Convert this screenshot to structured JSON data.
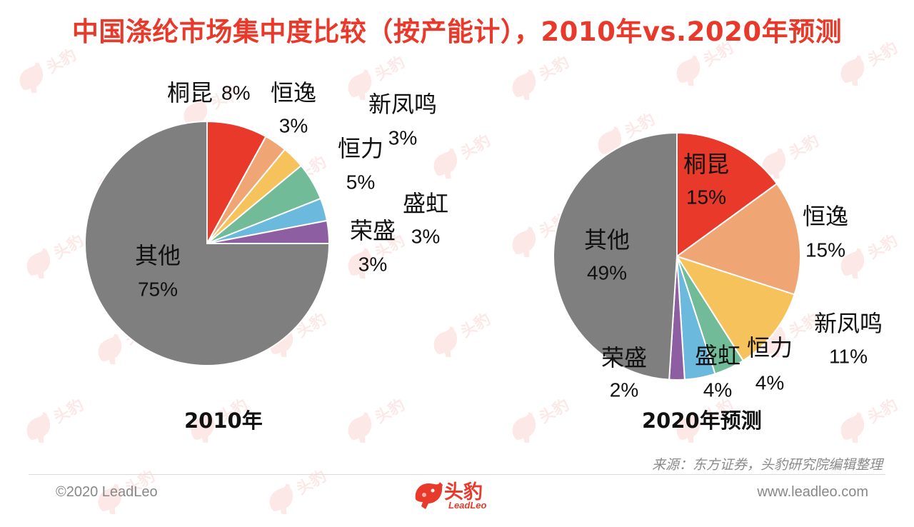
{
  "title": "中国涤纶市场集中度比较（按产能计），2010年vs.2020年预测",
  "source": "来源：东方证券，头豹研究院编辑整理",
  "footer": {
    "copyright": "©2020 LeadLeo",
    "website": "www.leadleo.com",
    "logo_cn": "头豹",
    "logo_en": "LeadLeo"
  },
  "colors": {
    "title": "#e8392b",
    "桐昆": "#e8392b",
    "恒逸": "#efa674",
    "新凤鸣": "#f6c25c",
    "恒力": "#72bb99",
    "盛虹": "#6bb9dc",
    "荣盛": "#8e5ea2",
    "其他": "#7f7f7f"
  },
  "chart_data": [
    {
      "type": "pie",
      "title": "2010年",
      "slices": [
        {
          "label": "桐昆",
          "value": 8,
          "value_label": "8%"
        },
        {
          "label": "恒逸",
          "value": 3,
          "value_label": "3%"
        },
        {
          "label": "新凤鸣",
          "value": 3,
          "value_label": "3%"
        },
        {
          "label": "恒力",
          "value": 5,
          "value_label": "5%"
        },
        {
          "label": "盛虹",
          "value": 3,
          "value_label": "3%"
        },
        {
          "label": "荣盛",
          "value": 3,
          "value_label": "3%"
        },
        {
          "label": "其他",
          "value": 75,
          "value_label": "75%"
        }
      ]
    },
    {
      "type": "pie",
      "title": "2020年预测",
      "slices": [
        {
          "label": "桐昆",
          "value": 15,
          "value_label": "15%"
        },
        {
          "label": "恒逸",
          "value": 15,
          "value_label": "15%"
        },
        {
          "label": "新凤鸣",
          "value": 11,
          "value_label": "11%"
        },
        {
          "label": "恒力",
          "value": 4,
          "value_label": "4%"
        },
        {
          "label": "盛虹",
          "value": 4,
          "value_label": "4%"
        },
        {
          "label": "荣盛",
          "value": 2,
          "value_label": "2%"
        },
        {
          "label": "其他",
          "value": 49,
          "value_label": "49%"
        }
      ]
    }
  ]
}
